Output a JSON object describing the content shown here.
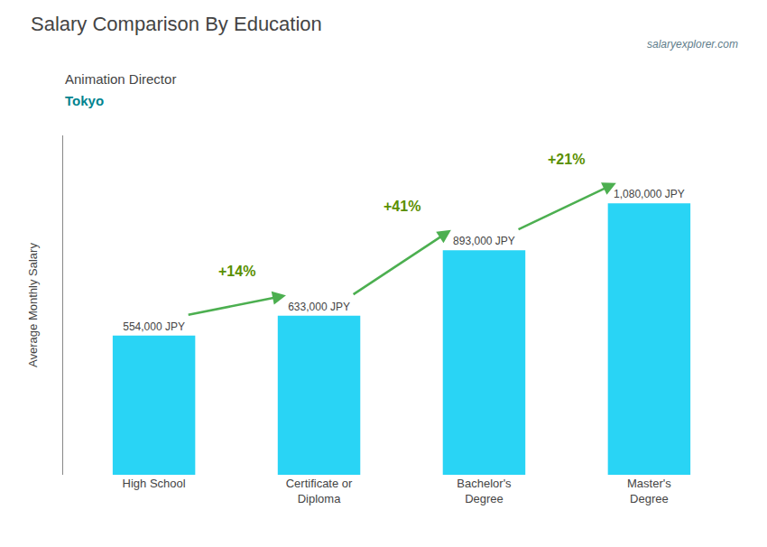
{
  "chart_data": {
    "type": "bar",
    "title": "Salary Comparison By Education",
    "subtitle": [
      "Animation Director",
      "Tokyo"
    ],
    "source": "salaryexplorer.com",
    "ylabel": "Average Monthly Salary",
    "categories": [
      "High School",
      "Certificate or\nDiploma",
      "Bachelor's\nDegree",
      "Master's\nDegree"
    ],
    "values": [
      554000,
      633000,
      893000,
      1080000
    ],
    "value_labels": [
      "554,000 JPY",
      "633,000 JPY",
      "893,000 JPY",
      "1,080,000 JPY"
    ],
    "data_labels": true,
    "annotations": [
      "+14%",
      "+41%",
      "+21%"
    ],
    "color": "#29d4f5",
    "ylim": [
      0,
      1350000
    ],
    "tick_labels": "x",
    "grid": false
  }
}
